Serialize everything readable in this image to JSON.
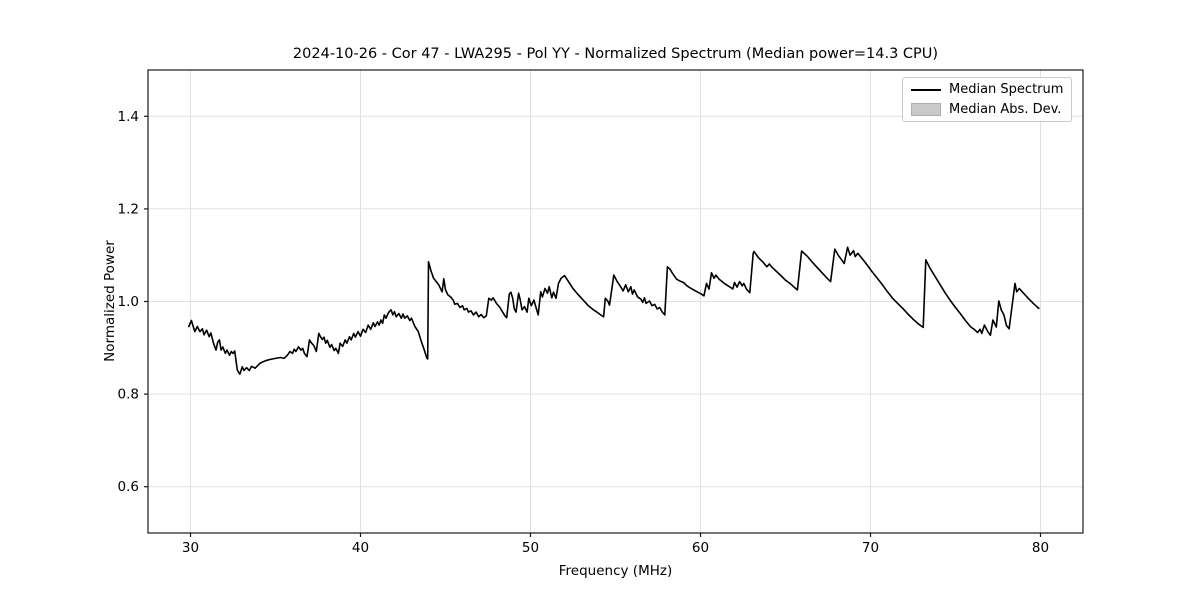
{
  "chart_data": {
    "type": "line",
    "title": "2024-10-26 - Cor 47 - LWA295 - Pol YY - Normalized Spectrum (Median power=14.3 CPU)",
    "xlabel": "Frequency (MHz)",
    "ylabel": "Normalized Power",
    "xlim": [
      27.5,
      82.5
    ],
    "ylim": [
      0.5,
      1.5
    ],
    "xticks": [
      30,
      40,
      50,
      60,
      70,
      80
    ],
    "yticks": [
      0.6,
      0.8,
      1.0,
      1.2,
      1.4
    ],
    "grid": true,
    "grid_color": "#e0e0e0",
    "spine_color": "#1a1a1a",
    "legend_position": "upper right",
    "legend": [
      {
        "label": "Median Spectrum",
        "swatch": "line",
        "color": "#000000"
      },
      {
        "label": "Median Abs. Dev.",
        "swatch": "patch",
        "fill": "#c9c9c9",
        "edge": "#aeaeae"
      }
    ],
    "series": [
      {
        "name": "Median Spectrum",
        "color": "#000000",
        "x": [
          29.9,
          30.05,
          30.25,
          30.4,
          30.55,
          30.7,
          30.8,
          30.95,
          31.1,
          31.2,
          31.35,
          31.5,
          31.6,
          31.7,
          31.8,
          31.9,
          32.05,
          32.15,
          32.3,
          32.4,
          32.5,
          32.6,
          32.75,
          32.9,
          33.05,
          33.15,
          33.3,
          33.45,
          33.6,
          33.8,
          34.1,
          34.4,
          34.7,
          35.0,
          35.3,
          35.5,
          35.7,
          35.85,
          36.0,
          36.1,
          36.2,
          36.35,
          36.5,
          36.6,
          36.7,
          36.85,
          37.0,
          37.1,
          37.25,
          37.4,
          37.55,
          37.65,
          37.75,
          37.85,
          37.95,
          38.05,
          38.2,
          38.3,
          38.45,
          38.55,
          38.7,
          38.8,
          38.95,
          39.1,
          39.2,
          39.35,
          39.45,
          39.6,
          39.7,
          39.85,
          40.0,
          40.15,
          40.3,
          40.45,
          40.6,
          40.75,
          40.85,
          41.0,
          41.1,
          41.2,
          41.3,
          41.4,
          41.5,
          41.65,
          41.8,
          41.9,
          42.0,
          42.1,
          42.25,
          42.4,
          42.5,
          42.6,
          42.75,
          42.9,
          43.0,
          43.2,
          43.4,
          43.55,
          43.75,
          43.9,
          43.95,
          44.0,
          44.15,
          44.3,
          44.6,
          44.8,
          44.9,
          45.0,
          45.15,
          45.3,
          45.45,
          45.55,
          45.7,
          45.85,
          46.0,
          46.1,
          46.25,
          46.35,
          46.5,
          46.65,
          46.8,
          46.95,
          47.1,
          47.25,
          47.4,
          47.55,
          47.7,
          47.8,
          48.0,
          48.2,
          48.35,
          48.5,
          48.6,
          48.75,
          48.85,
          48.95,
          49.05,
          49.15,
          49.3,
          49.4,
          49.5,
          49.65,
          49.8,
          49.9,
          50.05,
          50.2,
          50.3,
          50.45,
          50.6,
          50.7,
          50.85,
          51.0,
          51.1,
          51.25,
          51.35,
          51.5,
          51.65,
          51.8,
          52.0,
          52.2,
          52.5,
          52.8,
          53.1,
          53.4,
          53.7,
          53.9,
          54.1,
          54.3,
          54.4,
          54.55,
          54.65,
          54.9,
          55.1,
          55.3,
          55.45,
          55.6,
          55.75,
          55.9,
          56.0,
          56.1,
          56.3,
          56.5,
          56.6,
          56.7,
          56.8,
          57.0,
          57.15,
          57.3,
          57.45,
          57.6,
          57.75,
          57.9,
          58.05,
          58.2,
          58.35,
          58.6,
          58.8,
          59.0,
          59.2,
          59.5,
          59.8,
          60.05,
          60.2,
          60.35,
          60.5,
          60.65,
          60.8,
          60.9,
          61.1,
          61.4,
          61.7,
          61.9,
          62.0,
          62.15,
          62.3,
          62.45,
          62.55,
          62.7,
          62.9,
          63.1,
          63.15,
          63.4,
          63.7,
          63.9,
          64.05,
          64.2,
          64.5,
          64.75,
          65.0,
          65.3,
          65.5,
          65.7,
          65.95,
          66.3,
          66.6,
          66.9,
          67.2,
          67.45,
          67.65,
          67.9,
          68.1,
          68.3,
          68.45,
          68.65,
          68.8,
          69.0,
          69.1,
          69.25,
          69.5,
          69.8,
          70.1,
          70.4,
          70.7,
          71.0,
          71.3,
          71.6,
          71.9,
          72.2,
          72.5,
          72.8,
          73.1,
          73.25,
          73.5,
          73.8,
          74.1,
          74.4,
          74.7,
          75.0,
          75.3,
          75.6,
          75.9,
          76.1,
          76.3,
          76.45,
          76.55,
          76.7,
          76.9,
          77.05,
          77.2,
          77.4,
          77.55,
          77.7,
          77.85,
          78.0,
          78.15,
          78.5,
          78.6,
          78.75,
          78.9,
          79.1,
          79.3,
          79.6,
          79.9
        ],
        "y": [
          0.946,
          0.959,
          0.935,
          0.946,
          0.935,
          0.941,
          0.928,
          0.938,
          0.924,
          0.932,
          0.91,
          0.895,
          0.912,
          0.917,
          0.895,
          0.902,
          0.888,
          0.895,
          0.884,
          0.892,
          0.888,
          0.893,
          0.852,
          0.843,
          0.859,
          0.851,
          0.857,
          0.851,
          0.86,
          0.856,
          0.867,
          0.872,
          0.875,
          0.877,
          0.879,
          0.877,
          0.884,
          0.892,
          0.888,
          0.897,
          0.892,
          0.902,
          0.895,
          0.899,
          0.888,
          0.881,
          0.917,
          0.911,
          0.905,
          0.892,
          0.931,
          0.924,
          0.918,
          0.923,
          0.91,
          0.916,
          0.901,
          0.907,
          0.894,
          0.899,
          0.888,
          0.91,
          0.903,
          0.917,
          0.91,
          0.924,
          0.917,
          0.931,
          0.923,
          0.935,
          0.925,
          0.94,
          0.933,
          0.949,
          0.94,
          0.954,
          0.946,
          0.956,
          0.949,
          0.96,
          0.953,
          0.971,
          0.964,
          0.976,
          0.982,
          0.971,
          0.978,
          0.967,
          0.974,
          0.964,
          0.973,
          0.964,
          0.969,
          0.959,
          0.964,
          0.946,
          0.935,
          0.917,
          0.895,
          0.878,
          0.876,
          1.086,
          1.066,
          1.05,
          1.036,
          1.021,
          1.049,
          1.025,
          1.014,
          1.01,
          1.003,
          0.994,
          0.996,
          0.987,
          0.991,
          0.982,
          0.985,
          0.977,
          0.98,
          0.971,
          0.977,
          0.967,
          0.972,
          0.965,
          0.969,
          1.007,
          1.003,
          1.008,
          0.996,
          0.987,
          0.978,
          0.969,
          0.965,
          1.016,
          1.02,
          1.007,
          0.984,
          0.977,
          1.018,
          1.003,
          0.982,
          0.989,
          0.977,
          1.007,
          0.991,
          1.003,
          0.99,
          0.971,
          1.021,
          1.01,
          1.028,
          1.018,
          1.032,
          1.008,
          1.02,
          1.007,
          1.039,
          1.05,
          1.056,
          1.045,
          1.028,
          1.015,
          1.003,
          0.991,
          0.982,
          0.977,
          0.972,
          0.967,
          1.007,
          1.001,
          0.992,
          1.057,
          1.043,
          1.032,
          1.023,
          1.036,
          1.021,
          1.032,
          1.016,
          1.025,
          1.01,
          1.005,
          0.998,
          1.008,
          0.996,
          1.001,
          0.991,
          0.994,
          0.984,
          0.987,
          0.977,
          0.971,
          1.075,
          1.07,
          1.061,
          1.048,
          1.044,
          1.041,
          1.034,
          1.027,
          1.021,
          1.016,
          1.012,
          1.039,
          1.027,
          1.062,
          1.05,
          1.057,
          1.048,
          1.039,
          1.032,
          1.027,
          1.041,
          1.031,
          1.043,
          1.034,
          1.039,
          1.027,
          1.019,
          1.104,
          1.108,
          1.095,
          1.084,
          1.075,
          1.081,
          1.074,
          1.064,
          1.055,
          1.046,
          1.038,
          1.031,
          1.025,
          1.109,
          1.097,
          1.084,
          1.072,
          1.06,
          1.05,
          1.043,
          1.113,
          1.1,
          1.09,
          1.082,
          1.117,
          1.1,
          1.11,
          1.097,
          1.104,
          1.093,
          1.079,
          1.064,
          1.05,
          1.036,
          1.021,
          1.007,
          0.996,
          0.985,
          0.973,
          0.962,
          0.952,
          0.944,
          1.09,
          1.072,
          1.054,
          1.036,
          1.018,
          1.002,
          0.987,
          0.973,
          0.958,
          0.945,
          0.94,
          0.933,
          0.94,
          0.931,
          0.949,
          0.935,
          0.927,
          0.96,
          0.945,
          1.001,
          0.981,
          0.971,
          0.948,
          0.941,
          1.039,
          1.021,
          1.028,
          1.022,
          1.014,
          1.006,
          0.995,
          0.985
        ]
      },
      {
        "name": "Median Abs. Dev.",
        "representation": "band-shown-in-legend-only",
        "color": "#c9c9c9"
      }
    ]
  }
}
